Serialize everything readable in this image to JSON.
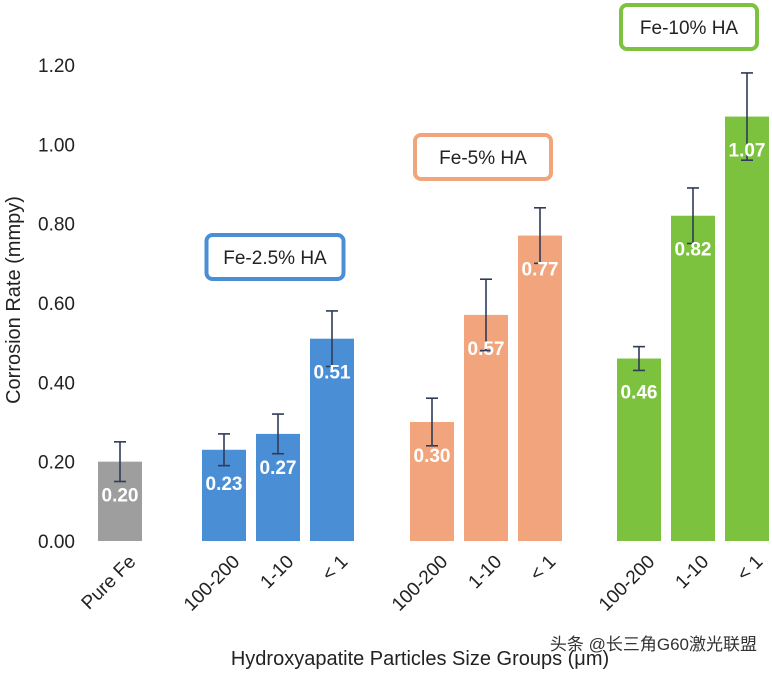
{
  "chart_data": {
    "type": "bar",
    "title": "",
    "ylabel": "Corrosion Rate (mmpy)",
    "xlabel": "Hydroxyapatite  Particles Size Groups (μm)",
    "ylim": [
      0,
      1.2
    ],
    "yticks": [
      "0.00",
      "0.20",
      "0.40",
      "0.60",
      "0.80",
      "1.00",
      "1.20"
    ],
    "grid": false,
    "colors": {
      "gray": "#9e9e9e",
      "blue": "#4a8fd6",
      "orange": "#f2a57c",
      "green": "#7cc23f",
      "error": "#2f3b57"
    },
    "groups": [
      {
        "name": "",
        "color": "gray",
        "bars": [
          {
            "label": "Pure Fe",
            "value": 0.2,
            "value_label": "0.20",
            "err": 0.05
          }
        ]
      },
      {
        "name": "Fe-2.5% HA",
        "color": "blue",
        "bars": [
          {
            "label": "100-200",
            "value": 0.23,
            "value_label": "0.23",
            "err": 0.04
          },
          {
            "label": "1-10",
            "value": 0.27,
            "value_label": "0.27",
            "err": 0.05
          },
          {
            "label": "< 1",
            "value": 0.51,
            "value_label": "0.51",
            "err": 0.07
          }
        ]
      },
      {
        "name": "Fe-5% HA",
        "color": "orange",
        "bars": [
          {
            "label": "100-200",
            "value": 0.3,
            "value_label": "0.30",
            "err": 0.06
          },
          {
            "label": "1-10",
            "value": 0.57,
            "value_label": "0.57",
            "err": 0.09
          },
          {
            "label": "< 1",
            "value": 0.77,
            "value_label": "0.77",
            "err": 0.07
          }
        ]
      },
      {
        "name": "Fe-10% HA",
        "color": "green",
        "bars": [
          {
            "label": "100-200",
            "value": 0.46,
            "value_label": "0.46",
            "err": 0.03
          },
          {
            "label": "1-10",
            "value": 0.82,
            "value_label": "0.82",
            "err": 0.07
          },
          {
            "label": "< 1",
            "value": 1.07,
            "value_label": "1.07",
            "err": 0.11
          }
        ]
      }
    ]
  },
  "watermark": "头条 @长三角G60激光联盟"
}
